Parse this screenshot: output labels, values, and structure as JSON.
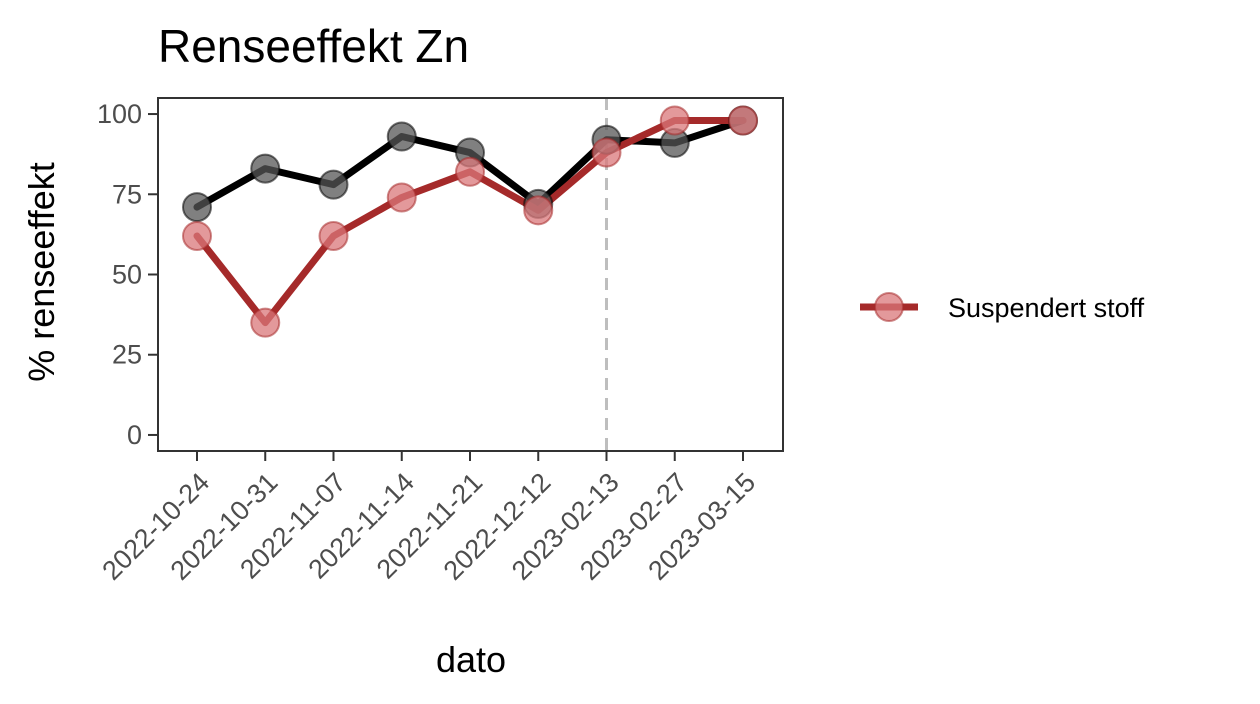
{
  "chart_data": {
    "type": "line",
    "title": "Renseeffekt Zn",
    "xlabel": "dato",
    "ylabel": "% renseeffekt",
    "categories": [
      "2022-10-24",
      "2022-10-31",
      "2022-11-07",
      "2022-11-14",
      "2022-11-21",
      "2022-12-12",
      "2023-02-13",
      "2023-02-27",
      "2023-03-15"
    ],
    "ylim": [
      -5,
      105
    ],
    "yticks": [
      0,
      25,
      50,
      75,
      100
    ],
    "grid": false,
    "series": [
      {
        "name": "",
        "color": "#000000",
        "point_fill": "#555555",
        "values": [
          71,
          83,
          78,
          93,
          88,
          72,
          92,
          91,
          98
        ],
        "in_legend": false
      },
      {
        "name": "Suspendert stoff",
        "color": "#a52a2a",
        "point_fill": "#d9777a",
        "values": [
          62,
          35,
          62,
          74,
          82,
          70,
          88,
          98,
          98
        ],
        "in_legend": true
      }
    ],
    "vline": {
      "category": "2023-02-13",
      "style": "dashed",
      "color": "#bebebe"
    },
    "legend_position": "right"
  }
}
